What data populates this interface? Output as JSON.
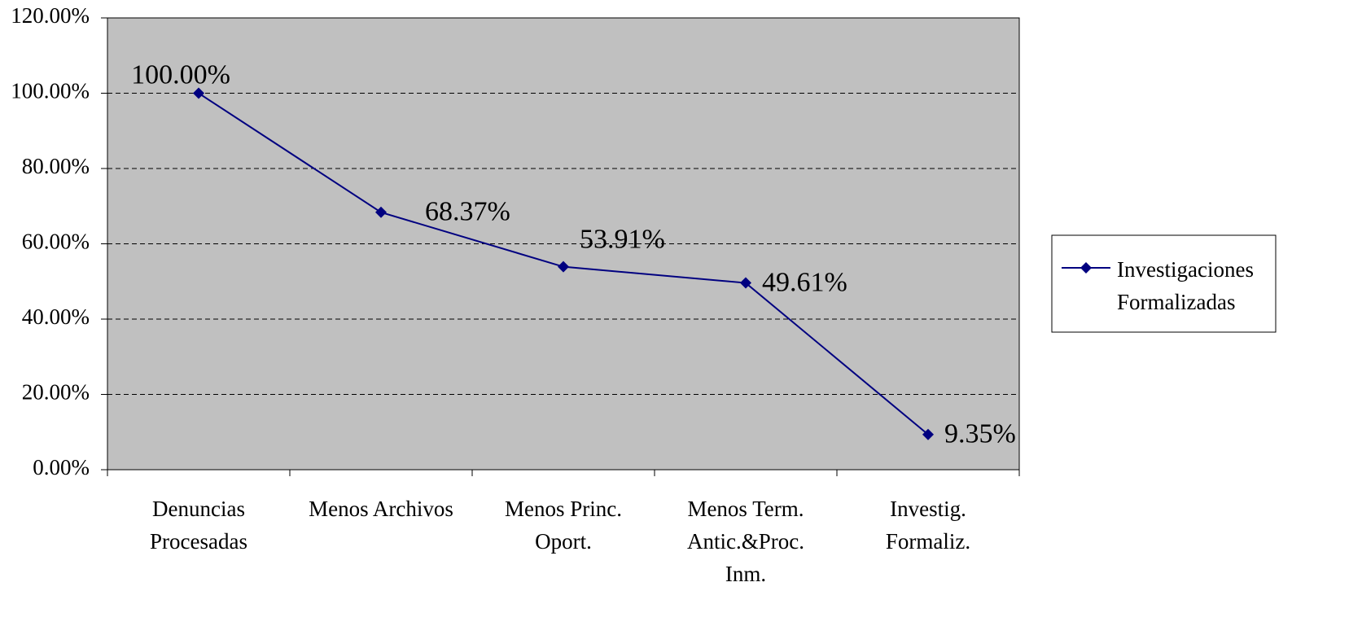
{
  "chart_data": {
    "type": "line",
    "categories": [
      "Denuncias\nProcesadas",
      "Menos Archivos",
      "Menos Princ.\nOport.",
      "Menos Term.\nAntic.&Proc.\nInm.",
      "Investig.\nFormaliz."
    ],
    "series": [
      {
        "name": "Investigaciones Formalizadas",
        "color": "#000080",
        "values": [
          100,
          68.37,
          53.91,
          49.61,
          9.35
        ],
        "value_labels": [
          "100.00%",
          "68.37%",
          "53.91%",
          "49.61%",
          "9.35%"
        ]
      }
    ],
    "ylim": [
      0,
      120
    ],
    "yticks": [
      {
        "value": 0,
        "label": "0.00%"
      },
      {
        "value": 20,
        "label": "20.00%"
      },
      {
        "value": 40,
        "label": "40.00%"
      },
      {
        "value": 60,
        "label": "60.00%"
      },
      {
        "value": 80,
        "label": "80.00%"
      },
      {
        "value": 100,
        "label": "100.00%"
      },
      {
        "value": 120,
        "label": "120.00%"
      }
    ],
    "grid": true,
    "legend": "right",
    "background": "#c0c0c0"
  }
}
